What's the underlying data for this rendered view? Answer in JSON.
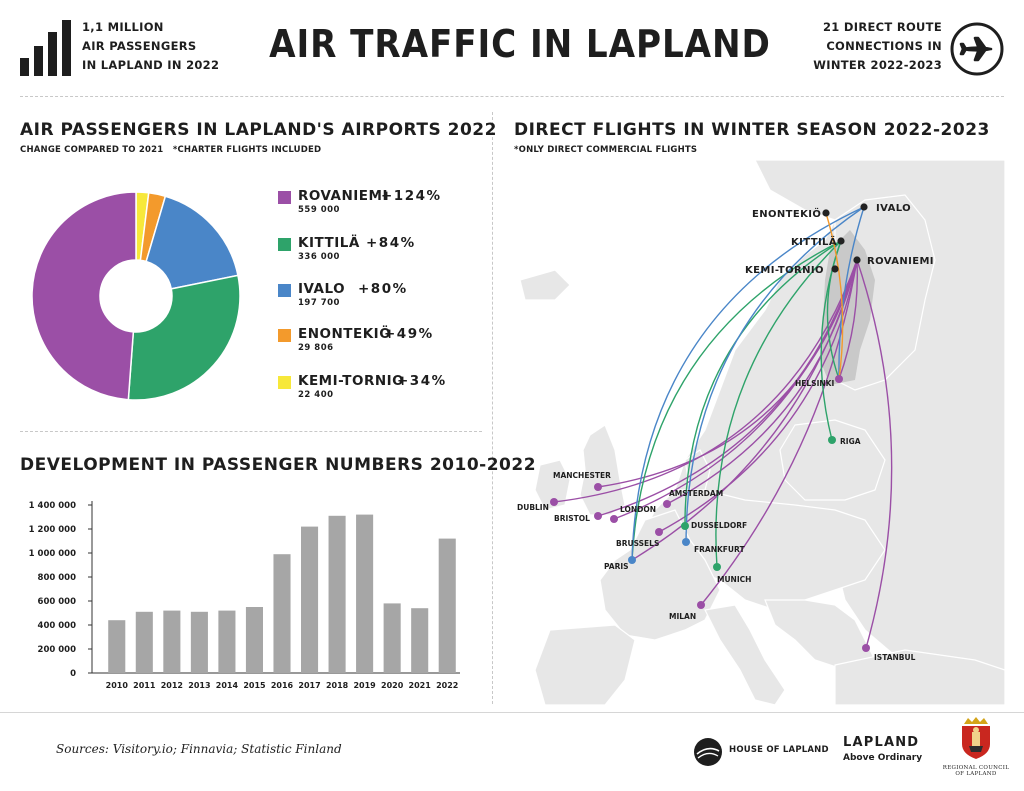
{
  "header": {
    "stat_line1": "1,1 MILLION",
    "stat_line2": "AIR PASSENGERS",
    "stat_line3": "IN LAPLAND IN 2022",
    "title": "AIR TRAFFIC IN LAPLAND",
    "routes_line1": "21 DIRECT ROUTE",
    "routes_line2": "CONNECTIONS IN",
    "routes_line3": "WINTER 2022-2023",
    "bars_icon": "bar-chart-icon",
    "plane_icon": "airplane-icon"
  },
  "pie_section": {
    "title": "AIR PASSENGERS IN LAPLAND'S AIRPORTS 2022",
    "subtitle": "CHANGE COMPARED TO 2021   *CHARTER FLIGHTS INCLUDED"
  },
  "bar_section": {
    "title": "DEVELOPMENT IN PASSENGER NUMBERS 2010-2022"
  },
  "map_section": {
    "title": "DIRECT FLIGHTS IN WINTER SEASON 2022-2023",
    "subtitle": "*ONLY DIRECT COMMERCIAL FLIGHTS",
    "origins": [
      {
        "name": "ENONTEKIÖ",
        "color": "#222222"
      },
      {
        "name": "IVALO",
        "color": "#222222"
      },
      {
        "name": "KITTILÄ",
        "color": "#222222"
      },
      {
        "name": "ROVANIEMI",
        "color": "#222222"
      },
      {
        "name": "KEMI-TORNIO",
        "color": "#222222"
      }
    ],
    "destinations": [
      {
        "name": "HELSINKI",
        "color": "#9b4fa6"
      },
      {
        "name": "RIGA",
        "color": "#2ea36a"
      },
      {
        "name": "MANCHESTER",
        "color": "#9b4fa6"
      },
      {
        "name": "DUBLIN",
        "color": "#9b4fa6"
      },
      {
        "name": "BRISTOL",
        "color": "#9b4fa6"
      },
      {
        "name": "LONDON",
        "color": "#9b4fa6"
      },
      {
        "name": "AMSTERDAM",
        "color": "#9b4fa6"
      },
      {
        "name": "DUSSELDORF",
        "color": "#2ea36a"
      },
      {
        "name": "BRUSSELS",
        "color": "#9b4fa6"
      },
      {
        "name": "FRANKFURT",
        "color": "#4a86c8"
      },
      {
        "name": "PARIS",
        "color": "#4a86c8"
      },
      {
        "name": "MUNICH",
        "color": "#2ea36a"
      },
      {
        "name": "MILAN",
        "color": "#9b4fa6"
      },
      {
        "name": "ISTANBUL",
        "color": "#9b4fa6"
      }
    ],
    "route_colors": {
      "rovaniemi": "#9b4fa6",
      "kittila": "#2ea36a",
      "ivalo": "#4a86c8",
      "enontekio": "#f39a2c"
    }
  },
  "footer": {
    "sources": "Sources: Visitory.io; Finnavia; Statistic Finland",
    "logo1": "HOUSE OF LAPLAND",
    "logo2_title": "LAPLAND",
    "logo2_sub": "Above Ordinary",
    "logo3_line1": "REGIONAL COUNCIL",
    "logo3_line2": "OF LAPLAND"
  },
  "chart_data": [
    {
      "type": "pie",
      "style": "donut",
      "slices": [
        {
          "label": "ROVANIEMI",
          "value": 559000,
          "value_label": "559 000",
          "change": "+124%",
          "color": "#9b4fa6"
        },
        {
          "label": "KITTILÄ",
          "value": 336000,
          "value_label": "336 000",
          "change": "+84%",
          "color": "#2ea36a"
        },
        {
          "label": "IVALO",
          "value": 197700,
          "value_label": "197 700",
          "change": "+80%",
          "color": "#4a86c8"
        },
        {
          "label": "ENONTEKIÖ",
          "value": 29806,
          "value_label": "29 806",
          "change": "+49%",
          "color": "#f39a2c"
        },
        {
          "label": "KEMI-TORNIO",
          "value": 22400,
          "value_label": "22 400",
          "change": "+34%",
          "color": "#f7e83a"
        }
      ],
      "legend_position": "right"
    },
    {
      "type": "bar",
      "categories": [
        "2010",
        "2011",
        "2012",
        "2013",
        "2014",
        "2015",
        "2016",
        "2017",
        "2018",
        "2019",
        "2020",
        "2021",
        "2022"
      ],
      "values": [
        440000,
        510000,
        520000,
        510000,
        520000,
        550000,
        990000,
        1220000,
        1310000,
        1320000,
        580000,
        540000,
        1120000
      ],
      "ylim": [
        0,
        1400000
      ],
      "yticks": [
        0,
        200000,
        400000,
        600000,
        800000,
        1000000,
        1200000,
        1400000
      ],
      "ytick_labels": [
        "0",
        "200 000",
        "400 000",
        "600 000",
        "800 000",
        "1 000 000",
        "1 200 000",
        "1 400 000"
      ],
      "bar_color": "#a6a6a6",
      "grid": false
    }
  ]
}
